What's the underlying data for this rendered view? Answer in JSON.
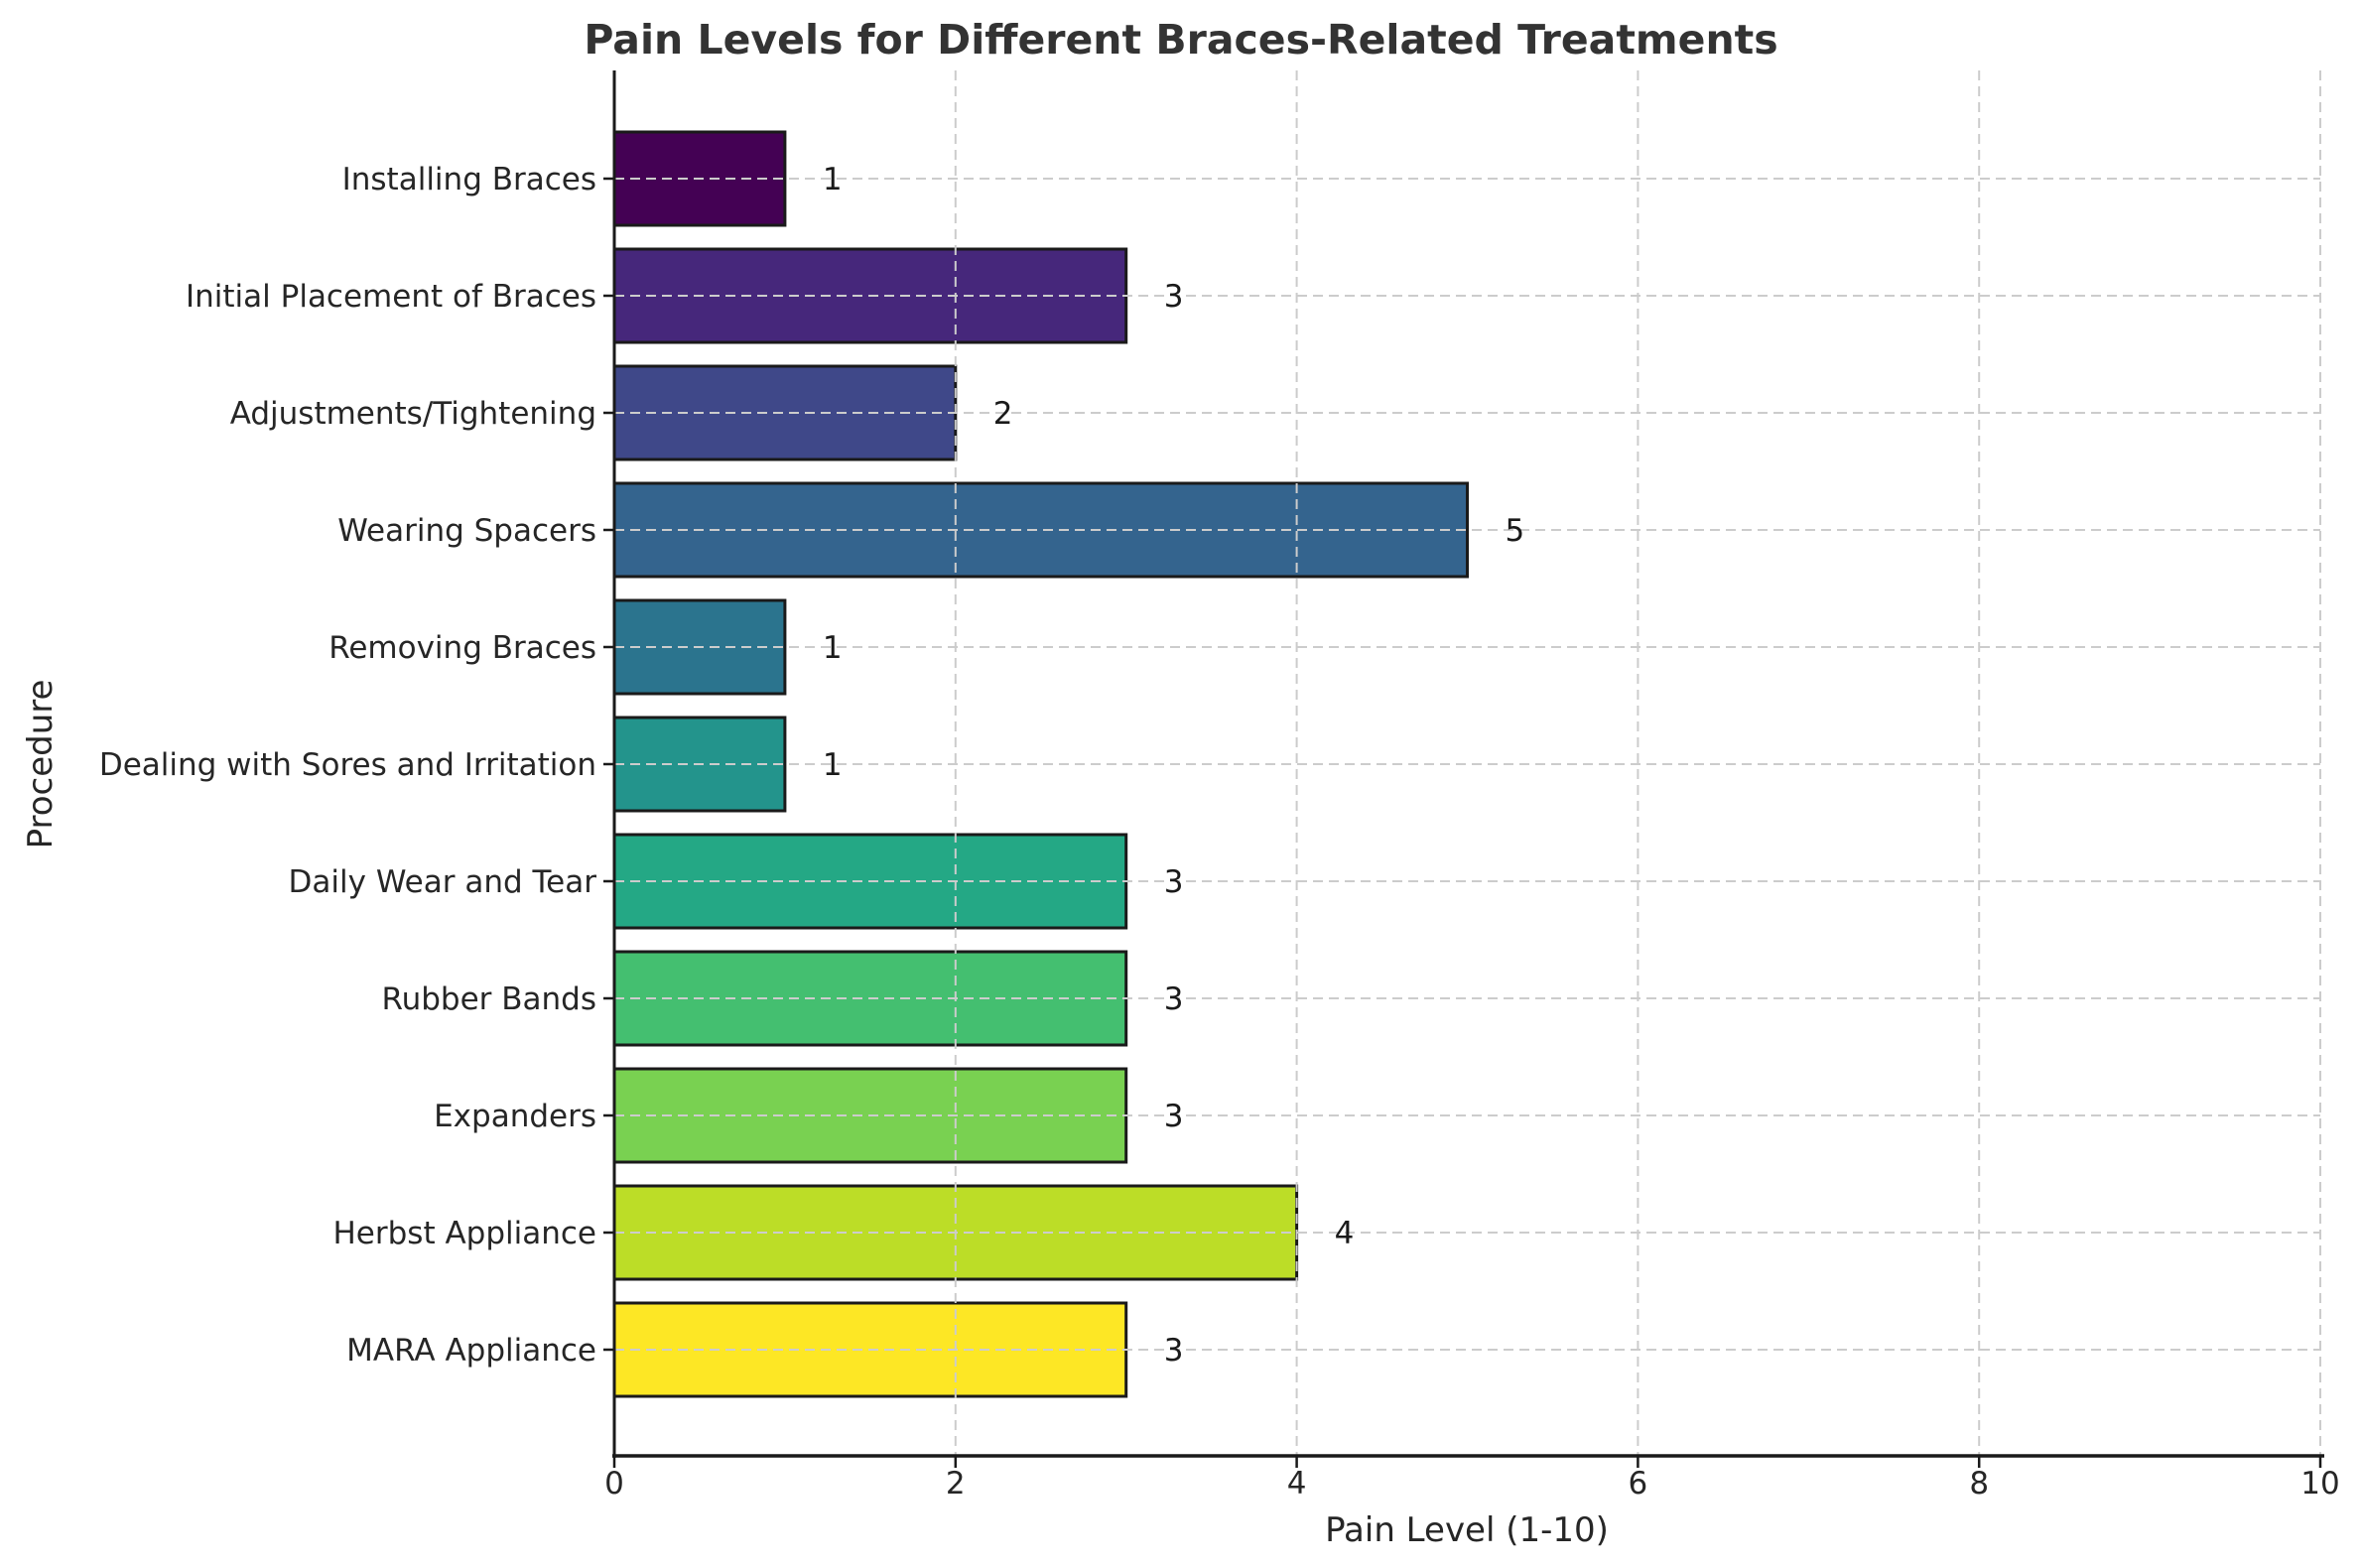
{
  "chart_data": {
    "type": "bar",
    "orientation": "horizontal",
    "title": "Pain Levels for Different Braces-Related Treatments",
    "xlabel": "Pain Level (1-10)",
    "ylabel": "Procedure",
    "categories": [
      "Installing Braces",
      "Initial Placement of Braces",
      "Adjustments/Tightening",
      "Wearing Spacers",
      "Removing Braces",
      "Dealing with Sores and Irritation",
      "Daily Wear and Tear",
      "Rubber Bands",
      "Expanders",
      "Herbst Appliance",
      "MARA Appliance"
    ],
    "values": [
      1,
      3,
      2,
      5,
      1,
      1,
      3,
      3,
      3,
      4,
      3
    ],
    "value_labels": [
      "1",
      "3",
      "2",
      "5",
      "1",
      "1",
      "3",
      "3",
      "3",
      "4",
      "3"
    ],
    "bar_colors": [
      "#440154",
      "#46277b",
      "#3f4889",
      "#34648e",
      "#2b748e",
      "#23948c",
      "#24a885",
      "#44bf70",
      "#79d151",
      "#bcdd27",
      "#fde725"
    ],
    "xlim": [
      0,
      10
    ],
    "xticks": [
      0,
      2,
      4,
      6,
      8,
      10
    ],
    "xtick_labels": [
      "0",
      "2",
      "4",
      "6",
      "8",
      "10"
    ],
    "grid": {
      "style": "dashed",
      "color": "#cccccc",
      "on_top": true
    },
    "bar_edge_color": "#1a1a1a",
    "spine_color": "#1a1a1a",
    "text_color": "#262626",
    "title_color": "#333333",
    "legend": "none"
  }
}
